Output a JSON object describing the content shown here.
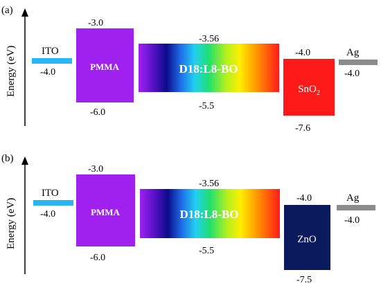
{
  "panels": [
    {
      "tag": "(a)",
      "axis_label": "Energy (eV)",
      "ito": {
        "name": "ITO",
        "value": "-4.0",
        "color": "#29b6f6"
      },
      "pmma": {
        "name": "PMMA",
        "top": "-3.0",
        "bottom": "-6.0",
        "color": "#a020f0"
      },
      "active": {
        "name": "D18:L8-BO",
        "top": "-3.56",
        "bottom": "-5.5"
      },
      "etl": {
        "name": "SnO",
        "subscript": "2",
        "top": "-4.0",
        "bottom": "-7.6",
        "color": "#ff1a1a"
      },
      "ag": {
        "name": "Ag",
        "value": "-4.0",
        "color": "#8c8c8c"
      }
    },
    {
      "tag": "(b)",
      "axis_label": "Energy (eV)",
      "ito": {
        "name": "ITO",
        "value": "-4.0",
        "color": "#29b6f6"
      },
      "pmma": {
        "name": "PMMA",
        "top": "-3.0",
        "bottom": "-6.0",
        "color": "#a020f0"
      },
      "active": {
        "name": "D18:L8-BO",
        "top": "-3.56",
        "bottom": "-5.5"
      },
      "etl": {
        "name": "ZnO",
        "subscript": "",
        "top": "-4.0",
        "bottom": "-7.5",
        "color": "#0b1a5c"
      },
      "ag": {
        "name": "Ag",
        "value": "-4.0",
        "color": "#8c8c8c"
      }
    }
  ]
}
